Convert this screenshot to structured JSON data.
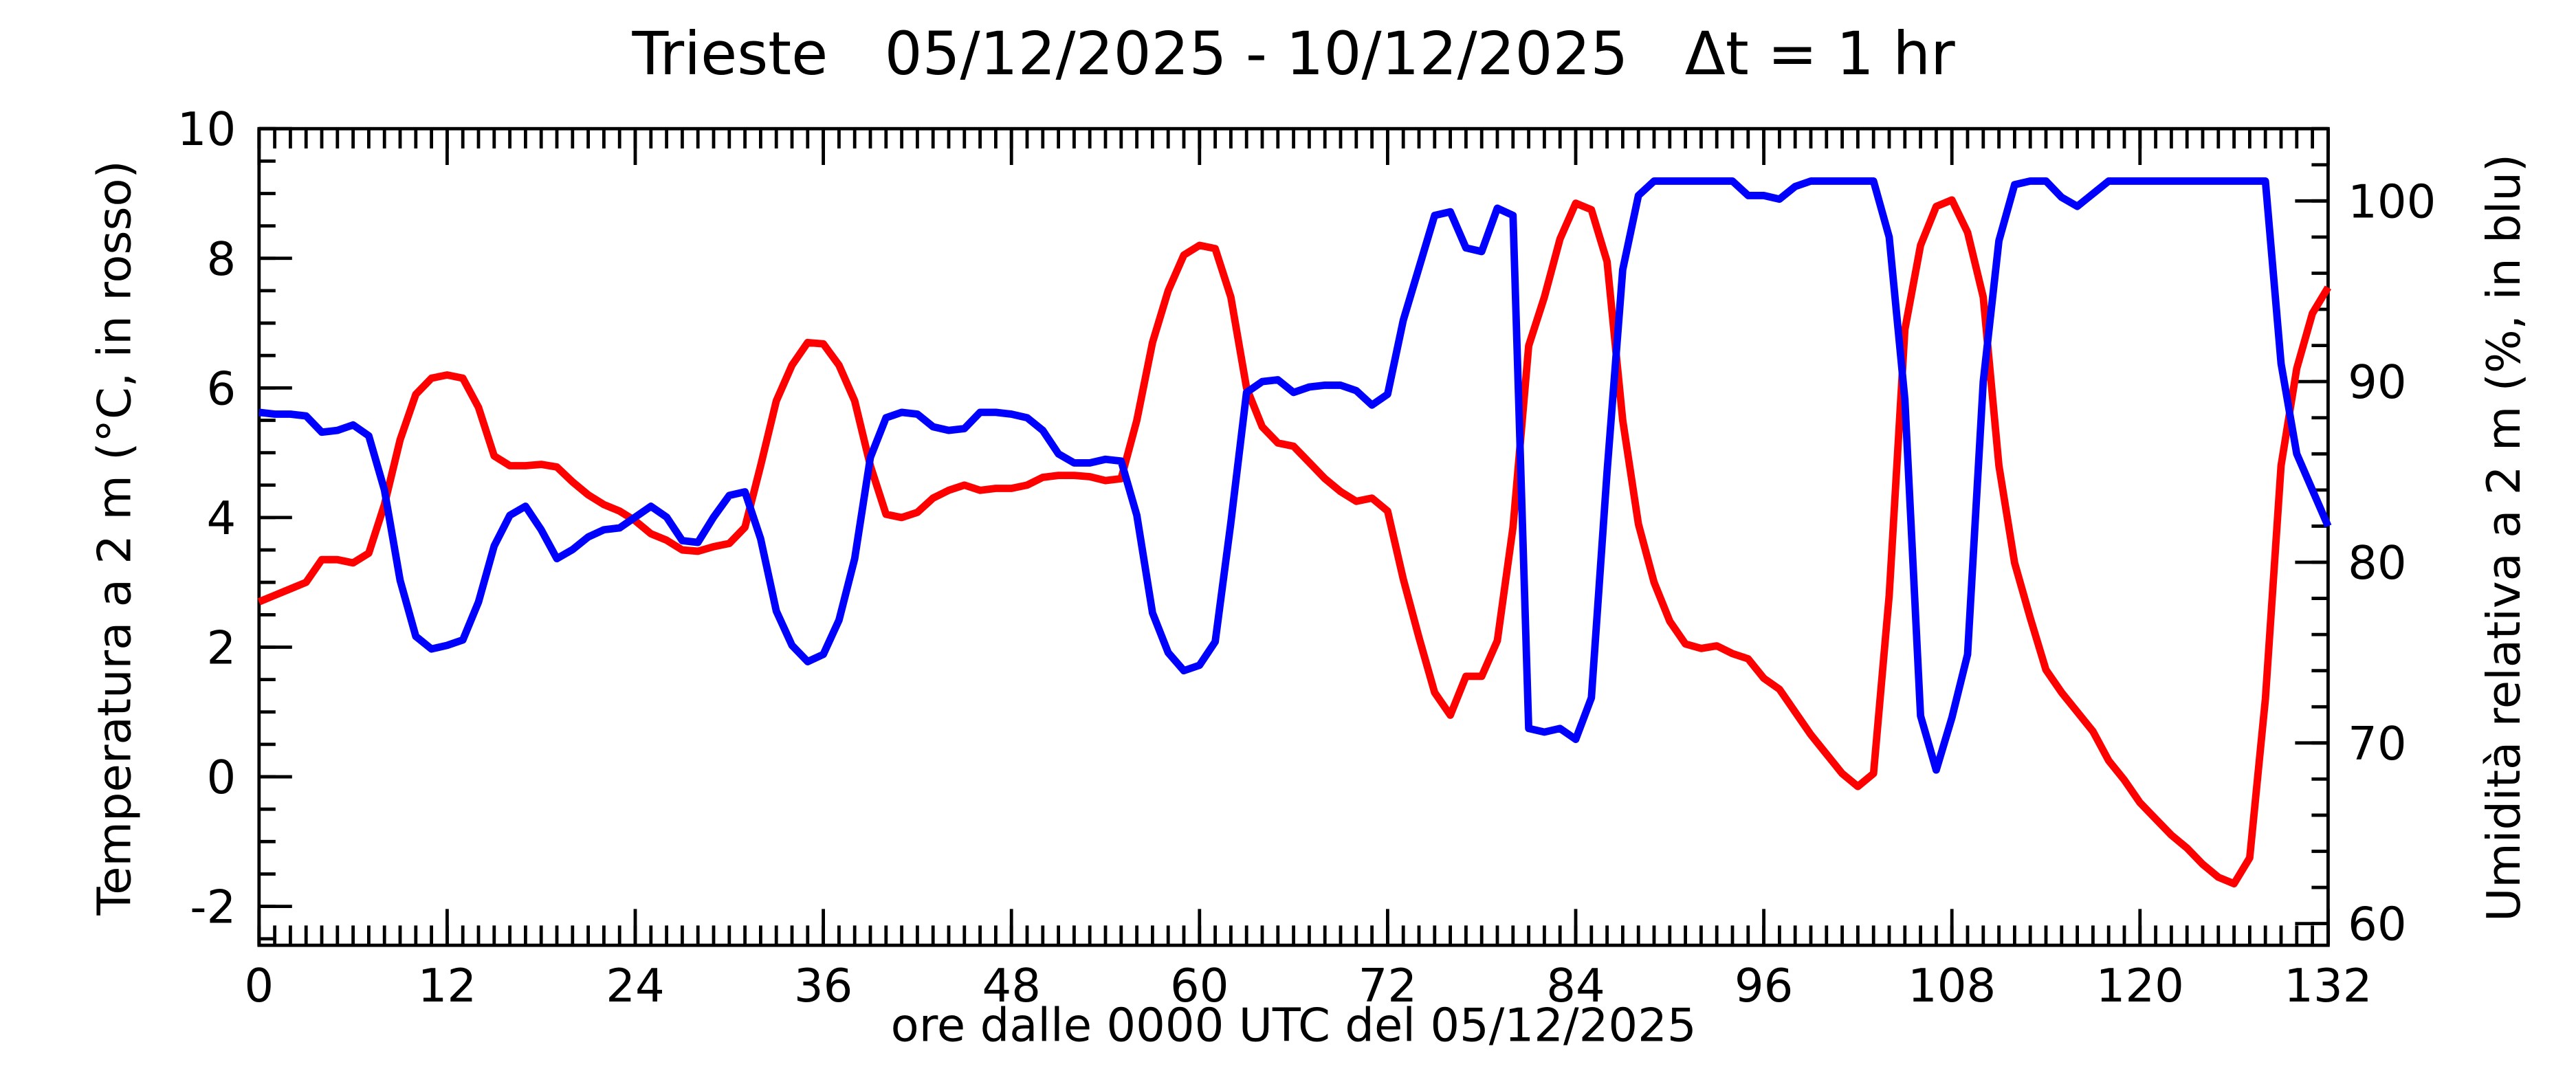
{
  "chart_data": {
    "type": "line",
    "title": "Trieste   05/12/2025 - 10/12/2025   Δt = 1 hr",
    "x_label": "ore dalle 0000 UTC del 05/12/2025",
    "y_label": "Temperatura a 2 m (°C, in rosso)",
    "y2_label": "Umidità relativa a 2 m (%, in blu)",
    "x": [
      0,
      1,
      2,
      3,
      4,
      5,
      6,
      7,
      8,
      9,
      10,
      11,
      12,
      13,
      14,
      15,
      16,
      17,
      18,
      19,
      20,
      21,
      22,
      23,
      24,
      25,
      26,
      27,
      28,
      29,
      30,
      31,
      32,
      33,
      34,
      35,
      36,
      37,
      38,
      39,
      40,
      41,
      42,
      43,
      44,
      45,
      46,
      47,
      48,
      49,
      50,
      51,
      52,
      53,
      54,
      55,
      56,
      57,
      58,
      59,
      60,
      61,
      62,
      63,
      64,
      65,
      66,
      67,
      68,
      69,
      70,
      71,
      72,
      73,
      74,
      75,
      76,
      77,
      78,
      79,
      80,
      81,
      82,
      83,
      84,
      85,
      86,
      87,
      88,
      89,
      90,
      91,
      92,
      93,
      94,
      95,
      96,
      97,
      98,
      99,
      100,
      101,
      102,
      103,
      104,
      105,
      106,
      107,
      108,
      109,
      110,
      111,
      112,
      113,
      114,
      115,
      116,
      117,
      118,
      119,
      120,
      121,
      122,
      123,
      124,
      125,
      126,
      127,
      128,
      129,
      130,
      131,
      132
    ],
    "xlim": [
      0,
      132
    ],
    "xticks": [
      0,
      12,
      24,
      36,
      48,
      60,
      72,
      84,
      96,
      108,
      120,
      132
    ],
    "ylim": [
      -2.6,
      10
    ],
    "yticks": [
      -2,
      0,
      2,
      4,
      6,
      8,
      10
    ],
    "y2lim": [
      58.8,
      104
    ],
    "y2ticks": [
      60,
      70,
      80,
      90,
      100
    ],
    "series": [
      {
        "name": "Temperatura",
        "color": "#ff0000",
        "axis": "y",
        "values": [
          2.7,
          2.8,
          2.9,
          3.0,
          3.35,
          3.35,
          3.3,
          3.45,
          4.2,
          5.2,
          5.9,
          6.15,
          6.2,
          6.15,
          5.7,
          4.95,
          4.8,
          4.8,
          4.82,
          4.78,
          4.55,
          4.35,
          4.2,
          4.1,
          3.95,
          3.75,
          3.65,
          3.5,
          3.48,
          3.55,
          3.6,
          3.85,
          4.8,
          5.8,
          6.35,
          6.7,
          6.68,
          6.35,
          5.8,
          4.8,
          4.05,
          4.0,
          4.08,
          4.3,
          4.42,
          4.5,
          4.42,
          4.45,
          4.45,
          4.5,
          4.62,
          4.65,
          4.65,
          4.63,
          4.57,
          4.6,
          5.5,
          6.7,
          7.5,
          8.05,
          8.2,
          8.15,
          7.4,
          6.0,
          5.4,
          5.15,
          5.1,
          4.85,
          4.6,
          4.4,
          4.25,
          4.3,
          4.1,
          3.05,
          2.15,
          1.3,
          0.95,
          1.55,
          1.55,
          2.1,
          3.85,
          6.65,
          7.4,
          8.3,
          8.85,
          8.75,
          7.95,
          5.5,
          3.9,
          3.0,
          2.4,
          2.05,
          1.98,
          2.02,
          1.9,
          1.82,
          1.52,
          1.35,
          1.0,
          0.65,
          0.35,
          0.05,
          -0.15,
          0.05,
          2.8,
          6.9,
          8.2,
          8.8,
          8.9,
          8.4,
          7.4,
          4.8,
          3.3,
          2.45,
          1.65,
          1.3,
          1.0,
          0.7,
          0.25,
          -0.05,
          -0.4,
          -0.65,
          -0.9,
          -1.1,
          -1.35,
          -1.55,
          -1.65,
          -1.25,
          1.2,
          4.8,
          6.3,
          7.15,
          7.55
        ]
      },
      {
        "name": "Umidità relativa",
        "color": "#0000ff",
        "axis": "y2",
        "values": [
          88.3,
          88.2,
          88.2,
          88.1,
          87.2,
          87.3,
          87.6,
          87.0,
          84.0,
          79.0,
          75.9,
          75.2,
          75.4,
          75.7,
          77.8,
          80.9,
          82.6,
          83.1,
          81.8,
          80.2,
          80.7,
          81.4,
          81.8,
          81.9,
          82.5,
          83.1,
          82.5,
          81.2,
          81.1,
          82.5,
          83.7,
          83.9,
          81.3,
          77.3,
          75.4,
          74.5,
          74.9,
          76.8,
          80.2,
          85.8,
          88.0,
          88.3,
          88.2,
          87.5,
          87.3,
          87.4,
          88.3,
          88.3,
          88.2,
          88.0,
          87.3,
          86.0,
          85.5,
          85.5,
          85.7,
          85.6,
          82.6,
          77.2,
          75.0,
          74.0,
          74.3,
          75.6,
          82.2,
          89.4,
          90.0,
          90.1,
          89.4,
          89.7,
          89.8,
          89.8,
          89.5,
          88.7,
          89.3,
          93.4,
          96.3,
          99.2,
          99.4,
          97.4,
          97.2,
          99.6,
          99.2,
          70.8,
          70.6,
          70.8,
          70.2,
          72.5,
          85.0,
          96.2,
          100.3,
          101.1,
          101.1,
          101.1,
          101.1,
          101.1,
          101.1,
          100.3,
          100.3,
          100.1,
          100.8,
          101.1,
          101.1,
          101.1,
          101.1,
          101.1,
          98.0,
          89.0,
          71.5,
          68.5,
          71.4,
          74.9,
          90.0,
          97.8,
          100.9,
          101.1,
          101.1,
          100.2,
          99.7,
          100.4,
          101.1,
          101.1,
          101.1,
          101.1,
          101.1,
          101.1,
          101.1,
          101.1,
          101.1,
          101.1,
          101.1,
          91.0,
          86.0,
          84.0,
          82.0
        ]
      }
    ]
  }
}
